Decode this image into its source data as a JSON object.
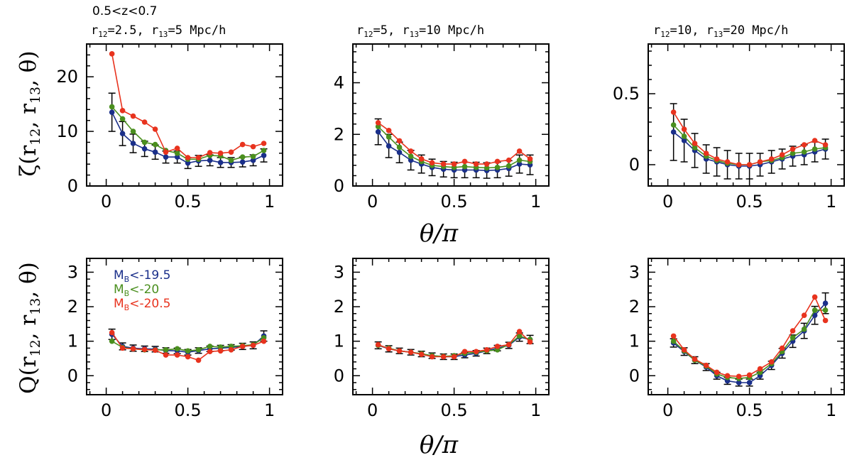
{
  "chart_data": {
    "type": "line",
    "global_title": "0.5<z<0.7",
    "xlabel": "θ/π",
    "ylabels": {
      "top": {
        "base": "ζ(r",
        "s1": "12",
        "mid": ", r",
        "s2": "13",
        "end": ", θ)"
      },
      "bottom": {
        "base": "Q(r",
        "s1": "12",
        "mid": ", r",
        "s2": "13",
        "end": ", θ)"
      }
    },
    "x_ticks": [
      0,
      0.5,
      1
    ],
    "x_tick_labels": [
      "0",
      "0.5",
      "1"
    ],
    "xlim": [
      -0.12,
      1.08
    ],
    "x": [
      0.035,
      0.1,
      0.165,
      0.235,
      0.3,
      0.365,
      0.435,
      0.5,
      0.565,
      0.635,
      0.7,
      0.765,
      0.835,
      0.9,
      0.965
    ],
    "column_titles": [
      {
        "r12": "2.5",
        "r13": "5",
        "unit": "Mpc/h"
      },
      {
        "r12": "5",
        "r13": "10",
        "unit": "Mpc/h"
      },
      {
        "r12": "10",
        "r13": "20",
        "unit": "Mpc/h"
      }
    ],
    "legend": [
      {
        "prefix": "M",
        "sub": "B",
        "text": "<-19.5",
        "color": "#1a2f8a"
      },
      {
        "prefix": "M",
        "sub": "B",
        "text": "<-20",
        "color": "#4a8f1e"
      },
      {
        "prefix": "M",
        "sub": "B",
        "text": "<-20.5",
        "color": "#e8331e"
      }
    ],
    "series_names": [
      "M_B<-19.5",
      "M_B<-20",
      "M_B<-20.5"
    ],
    "series_colors": [
      "#1a2f8a",
      "#4a8f1e",
      "#e8331e"
    ],
    "panels": [
      {
        "row": 0,
        "col": 0,
        "ylim": [
          0,
          26
        ],
        "y_ticks": [
          0,
          10,
          20
        ],
        "y_tick_labels": [
          "0",
          "10",
          "20"
        ],
        "series": [
          {
            "name": "M_B<-19.5",
            "values": [
              13.5,
              9.6,
              7.8,
              6.8,
              6.2,
              5.3,
              5.3,
              4.2,
              4.6,
              4.7,
              4.3,
              4.3,
              4.4,
              4.7,
              5.6
            ],
            "errors": [
              3.5,
              2.2,
              1.7,
              1.4,
              1.3,
              1.1,
              1.1,
              1.0,
              1.0,
              1.0,
              0.9,
              0.9,
              0.9,
              1.0,
              1.2
            ]
          },
          {
            "name": "M_B<-20",
            "values": [
              14.5,
              12.3,
              10.0,
              8.0,
              7.6,
              6.5,
              6.0,
              4.9,
              4.9,
              5.6,
              5.5,
              4.7,
              5.3,
              5.4,
              6.5
            ],
            "errors": []
          },
          {
            "name": "M_B<-20.5",
            "values": [
              24.2,
              13.8,
              12.8,
              11.7,
              10.4,
              6.2,
              6.9,
              5.2,
              5.2,
              6.1,
              6.0,
              6.2,
              7.6,
              7.2,
              7.8
            ],
            "errors": []
          }
        ]
      },
      {
        "row": 0,
        "col": 1,
        "ylim": [
          0,
          5.5
        ],
        "y_ticks": [
          0,
          2,
          4
        ],
        "y_tick_labels": [
          "0",
          "2",
          "4"
        ],
        "series": [
          {
            "name": "M_B<-19.5",
            "values": [
              2.1,
              1.55,
              1.3,
              1.0,
              0.85,
              0.72,
              0.65,
              0.62,
              0.62,
              0.62,
              0.6,
              0.62,
              0.68,
              0.85,
              0.82
            ],
            "errors": [
              0.5,
              0.45,
              0.4,
              0.38,
              0.35,
              0.32,
              0.3,
              0.3,
              0.3,
              0.3,
              0.3,
              0.3,
              0.3,
              0.35,
              0.38
            ]
          },
          {
            "name": "M_B<-20",
            "values": [
              2.3,
              1.9,
              1.5,
              1.15,
              0.95,
              0.8,
              0.75,
              0.72,
              0.75,
              0.72,
              0.7,
              0.72,
              0.78,
              1.0,
              0.95
            ],
            "errors": []
          },
          {
            "name": "M_B<-20.5",
            "values": [
              2.45,
              2.15,
              1.75,
              1.35,
              1.05,
              0.9,
              0.85,
              0.85,
              0.95,
              0.85,
              0.85,
              0.95,
              1.0,
              1.35,
              1.05
            ],
            "errors": []
          }
        ]
      },
      {
        "row": 0,
        "col": 2,
        "ylim": [
          -0.15,
          0.85
        ],
        "y_ticks": [
          0,
          0.5
        ],
        "y_tick_labels": [
          "0",
          "0.5"
        ],
        "series": [
          {
            "name": "M_B<-19.5",
            "values": [
              0.23,
              0.17,
              0.1,
              0.04,
              0.02,
              0.0,
              -0.01,
              -0.01,
              0.0,
              0.02,
              0.04,
              0.06,
              0.07,
              0.09,
              0.11
            ],
            "errors": [
              0.2,
              0.15,
              0.12,
              0.1,
              0.1,
              0.1,
              0.09,
              0.09,
              0.08,
              0.08,
              0.07,
              0.07,
              0.07,
              0.07,
              0.07
            ]
          },
          {
            "name": "M_B<-20",
            "values": [
              0.28,
              0.2,
              0.12,
              0.06,
              0.03,
              0.01,
              0.0,
              0.0,
              0.02,
              0.03,
              0.05,
              0.08,
              0.09,
              0.11,
              0.12
            ],
            "errors": []
          },
          {
            "name": "M_B<-20.5",
            "values": [
              0.37,
              0.25,
              0.15,
              0.08,
              0.04,
              0.02,
              0.0,
              0.0,
              0.02,
              0.04,
              0.07,
              0.11,
              0.14,
              0.17,
              0.14
            ],
            "errors": []
          }
        ]
      },
      {
        "row": 1,
        "col": 0,
        "ylim": [
          -0.55,
          3.4
        ],
        "y_ticks": [
          0,
          1,
          2,
          3
        ],
        "y_tick_labels": [
          "0",
          "1",
          "2",
          "3"
        ],
        "series": [
          {
            "name": "M_B<-19.5",
            "values": [
              1.2,
              0.85,
              0.8,
              0.78,
              0.77,
              0.73,
              0.72,
              0.68,
              0.73,
              0.78,
              0.8,
              0.82,
              0.85,
              0.88,
              1.15
            ],
            "errors": [
              0.15,
              0.1,
              0.09,
              0.08,
              0.08,
              0.08,
              0.08,
              0.08,
              0.08,
              0.08,
              0.08,
              0.08,
              0.09,
              0.1,
              0.15
            ]
          },
          {
            "name": "M_B<-20",
            "values": [
              1.0,
              0.82,
              0.78,
              0.75,
              0.75,
              0.75,
              0.78,
              0.72,
              0.75,
              0.85,
              0.83,
              0.85,
              0.87,
              0.9,
              1.1
            ],
            "errors": []
          },
          {
            "name": "M_B<-20.5",
            "values": [
              1.25,
              0.8,
              0.78,
              0.76,
              0.74,
              0.6,
              0.6,
              0.55,
              0.45,
              0.7,
              0.72,
              0.75,
              0.85,
              0.88,
              1.0
            ],
            "errors": []
          }
        ]
      },
      {
        "row": 1,
        "col": 1,
        "ylim": [
          -0.55,
          3.4
        ],
        "y_ticks": [
          0,
          1,
          2,
          3
        ],
        "y_tick_labels": [
          "0",
          "1",
          "2",
          "3"
        ],
        "series": [
          {
            "name": "M_B<-19.5",
            "values": [
              0.88,
              0.78,
              0.72,
              0.68,
              0.63,
              0.58,
              0.55,
              0.55,
              0.6,
              0.65,
              0.72,
              0.8,
              0.88,
              1.12,
              1.05
            ],
            "errors": [
              0.1,
              0.09,
              0.08,
              0.08,
              0.08,
              0.08,
              0.08,
              0.08,
              0.08,
              0.08,
              0.08,
              0.08,
              0.09,
              0.12,
              0.12
            ]
          },
          {
            "name": "M_B<-20",
            "values": [
              0.88,
              0.8,
              0.72,
              0.68,
              0.64,
              0.58,
              0.56,
              0.58,
              0.65,
              0.68,
              0.72,
              0.75,
              0.9,
              1.15,
              1.05
            ],
            "errors": []
          },
          {
            "name": "M_B<-20.5",
            "values": [
              0.9,
              0.78,
              0.72,
              0.68,
              0.62,
              0.55,
              0.55,
              0.55,
              0.7,
              0.7,
              0.75,
              0.85,
              0.9,
              1.28,
              0.98
            ],
            "errors": []
          }
        ]
      },
      {
        "row": 1,
        "col": 2,
        "ylim": [
          -0.55,
          3.4
        ],
        "y_ticks": [
          0,
          1,
          2,
          3
        ],
        "y_tick_labels": [
          "0",
          "1",
          "2",
          "3"
        ],
        "series": [
          {
            "name": "M_B<-19.5",
            "values": [
              0.95,
              0.7,
              0.45,
              0.25,
              0.0,
              -0.15,
              -0.2,
              -0.2,
              0.0,
              0.3,
              0.65,
              1.0,
              1.3,
              1.75,
              2.1
            ],
            "errors": [
              0.12,
              0.11,
              0.1,
              0.1,
              0.1,
              0.1,
              0.1,
              0.1,
              0.1,
              0.12,
              0.14,
              0.18,
              0.22,
              0.26,
              0.3
            ]
          },
          {
            "name": "M_B<-20",
            "values": [
              1.0,
              0.72,
              0.45,
              0.28,
              0.05,
              -0.05,
              -0.08,
              -0.05,
              0.1,
              0.35,
              0.7,
              1.1,
              1.35,
              1.9,
              1.9
            ],
            "errors": []
          },
          {
            "name": "M_B<-20.5",
            "values": [
              1.15,
              0.75,
              0.48,
              0.3,
              0.1,
              0.0,
              -0.02,
              0.02,
              0.2,
              0.4,
              0.8,
              1.3,
              1.75,
              2.28,
              1.6
            ],
            "errors": []
          }
        ]
      }
    ]
  }
}
